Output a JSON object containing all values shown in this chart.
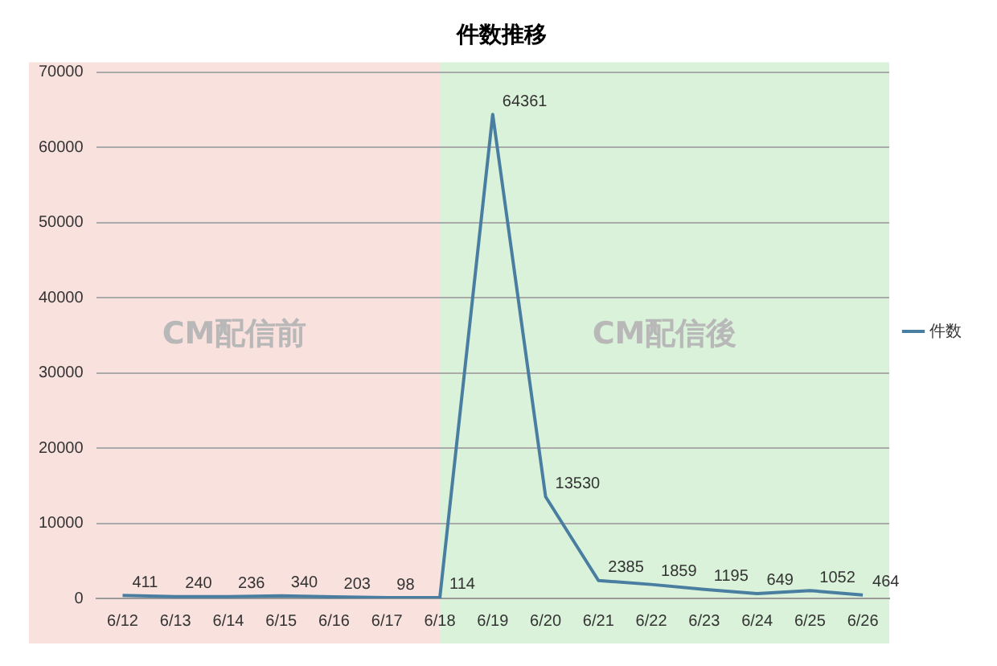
{
  "chart_data": {
    "type": "line",
    "title": "件数推移",
    "categories": [
      "6/12",
      "6/13",
      "6/14",
      "6/15",
      "6/16",
      "6/17",
      "6/18",
      "6/19",
      "6/20",
      "6/21",
      "6/22",
      "6/23",
      "6/24",
      "6/25",
      "6/26"
    ],
    "series": [
      {
        "name": "件数",
        "color": "#4a7ea0",
        "values": [
          411,
          240,
          236,
          340,
          203,
          98,
          114,
          64361,
          13530,
          2385,
          1859,
          1195,
          649,
          1052,
          464
        ]
      }
    ],
    "ylim": [
      0,
      70000
    ],
    "yticks": [
      0,
      10000,
      20000,
      30000,
      40000,
      50000,
      60000,
      70000
    ],
    "grid": "y",
    "legend": "right",
    "data_labels": true,
    "marker": "none",
    "bands": [
      {
        "axis": "x",
        "from": "6/12",
        "to": "6/18",
        "label": "CM配信前",
        "color": "#f9e1dd"
      },
      {
        "axis": "x",
        "from": "6/18",
        "to": "6/26",
        "label": "CM配信後",
        "color": "#daf2da"
      }
    ]
  }
}
